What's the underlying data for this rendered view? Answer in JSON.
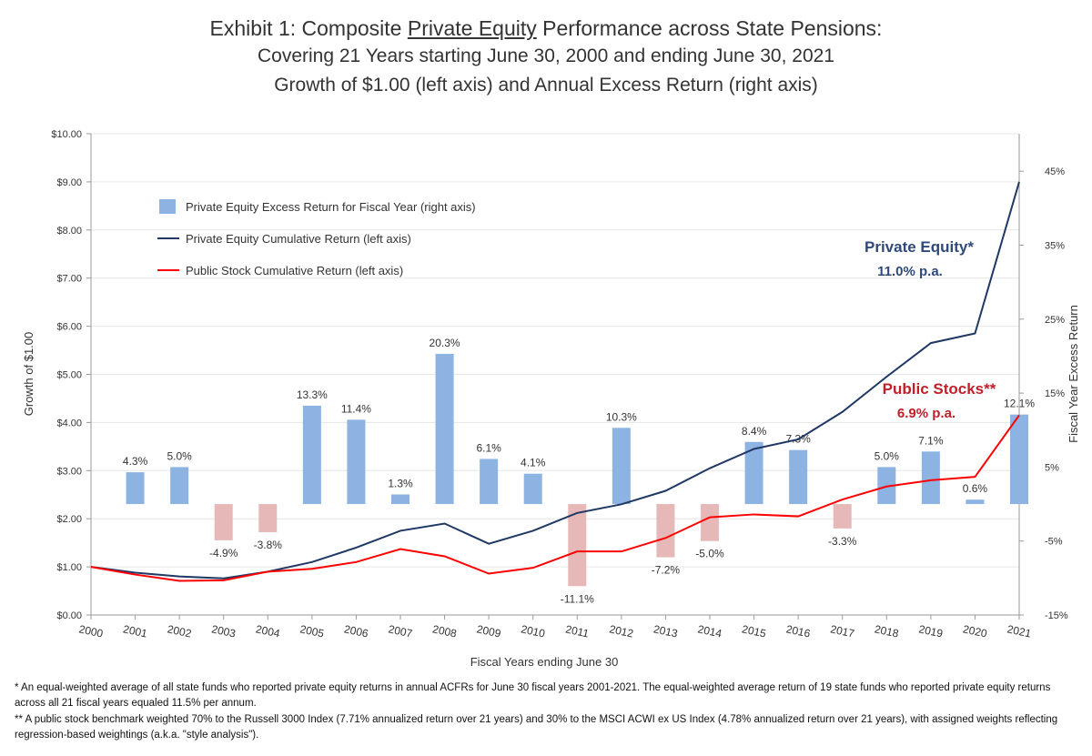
{
  "header": {
    "title_prefix": "Exhibit 1:  Composite ",
    "title_underlined": "Private Equity",
    "title_suffix": " Performance across State Pensions:",
    "subtitle1": "Covering 21 Years starting June 30, 2000 and ending June 30, 2021",
    "subtitle2": "Growth of $1.00 (left axis) and Annual Excess Return (right axis)"
  },
  "chart_data": {
    "type": "bar+line",
    "xlabel": "Fiscal Years ending June 30",
    "ylabel_left": "Growth of $1.00",
    "ylabel_right": "Fiscal Year Excess Return",
    "ylim_left": [
      0,
      10
    ],
    "ylim_right": [
      -15,
      50
    ],
    "left_ticks": [
      "$0.00",
      "$1.00",
      "$2.00",
      "$3.00",
      "$4.00",
      "$5.00",
      "$6.00",
      "$7.00",
      "$8.00",
      "$9.00",
      "$10.00"
    ],
    "right_ticks": [
      "-15%",
      "-5%",
      "5%",
      "15%",
      "25%",
      "35%",
      "45%"
    ],
    "grid": true,
    "x": [
      "2000",
      "2001",
      "2002",
      "2003",
      "2004",
      "2005",
      "2006",
      "2007",
      "2008",
      "2009",
      "2010",
      "2011",
      "2012",
      "2013",
      "2014",
      "2015",
      "2016",
      "2017",
      "2018",
      "2019",
      "2020",
      "2021"
    ],
    "legend": [
      "Private Equity Excess Return for Fiscal Year (right axis)",
      "Private Equity Cumulative Return (left axis)",
      "Public Stock Cumulative Return (left axis)"
    ],
    "legend_position": "top-left",
    "series": [
      {
        "name": "Private Equity Excess Return for Fiscal Year (right axis)",
        "type": "bar",
        "axis": "right",
        "values": [
          null,
          4.3,
          5.0,
          -4.9,
          -3.8,
          13.3,
          11.4,
          1.3,
          20.3,
          6.1,
          4.1,
          -11.1,
          10.3,
          -7.2,
          -5.0,
          8.4,
          7.3,
          -3.3,
          5.0,
          7.1,
          0.6,
          12.1
        ],
        "labels": [
          "",
          "4.3%",
          "5.0%",
          "-4.9%",
          "-3.8%",
          "13.3%",
          "11.4%",
          "1.3%",
          "20.3%",
          "6.1%",
          "4.1%",
          "-11.1%",
          "10.3%",
          "-7.2%",
          "-5.0%",
          "8.4%",
          "7.3%",
          "-3.3%",
          "5.0%",
          "7.1%",
          "0.6%",
          "12.1%"
        ],
        "color_pos": "#8db3e2",
        "color_neg": "#e6b8b7"
      },
      {
        "name": "Private Equity Cumulative Return (left axis)",
        "type": "line",
        "axis": "left",
        "color": "#1f3864",
        "values": [
          1.0,
          0.88,
          0.8,
          0.76,
          0.9,
          1.1,
          1.4,
          1.75,
          1.9,
          1.48,
          1.75,
          2.12,
          2.3,
          2.58,
          3.05,
          3.45,
          3.65,
          4.22,
          4.95,
          5.65,
          5.85,
          9.0
        ]
      },
      {
        "name": "Public Stock Cumulative Return (left axis)",
        "type": "line",
        "axis": "left",
        "color": "#ff0000",
        "values": [
          1.0,
          0.84,
          0.71,
          0.72,
          0.9,
          0.96,
          1.1,
          1.37,
          1.22,
          0.86,
          0.98,
          1.32,
          1.32,
          1.6,
          2.03,
          2.09,
          2.05,
          2.4,
          2.67,
          2.8,
          2.87,
          4.15
        ]
      }
    ],
    "annotations": [
      {
        "text1": "Private Equity*",
        "text2": "11.0% p.a.",
        "color": "#2f4a7a"
      },
      {
        "text1": "Public Stocks**",
        "text2": "6.9% p.a.",
        "color": "#c0202a"
      }
    ]
  },
  "footnotes": [
    "*  An equal-weighted average of all state funds who reported  private equity returns in annual ACFRs for June 30 fiscal years 2001-2021.  The equal-weighted average return of 19 state funds who reported private equity returns across all 21 fiscal years equaled 11.5% per annum.",
    "** A public stock benchmark weighted 70% to the Russell 3000 Index (7.71% annualized return over 21 years) and 30% to the MSCI ACWI ex US Index (4.78% annualized return over 21 years), with assigned weights reflecting regression-based weightings (a.k.a. \"style analysis\")."
  ]
}
